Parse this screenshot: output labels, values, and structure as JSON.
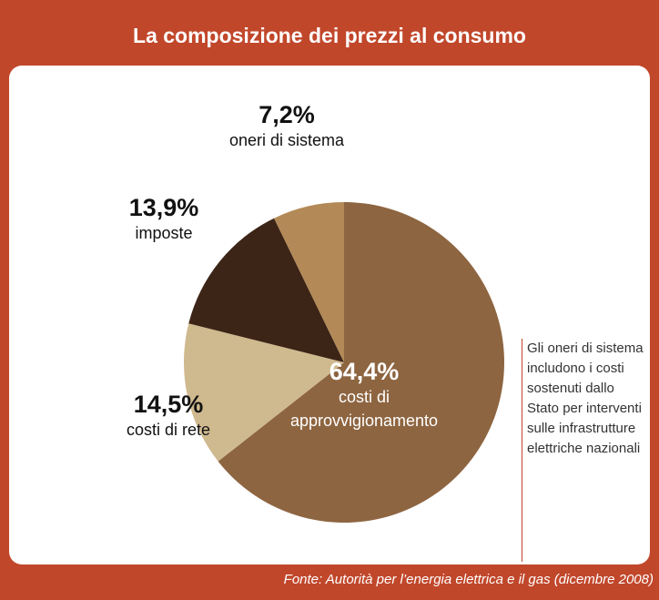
{
  "chart_data": {
    "type": "pie",
    "title": "La composizione dei prezzi al consumo",
    "categories": [
      "costi di approvvigionamento",
      "costi di rete",
      "imposte",
      "oneri di sistema"
    ],
    "values": [
      64.4,
      14.5,
      13.9,
      7.2
    ],
    "value_labels": [
      "64,4%",
      "14,5%",
      "13,9%",
      "7,2%"
    ],
    "colors": [
      "#8e6541",
      "#cfb98e",
      "#3c2416",
      "#b38a57"
    ],
    "note": "Gli oneri di sistema includono i costi sostenuti dallo Stato per interventi sulle infrastrutture elettriche nazionali",
    "source": "Fonte: Autorità per l’energia elettrica e il gas (dicembre 2008)"
  }
}
